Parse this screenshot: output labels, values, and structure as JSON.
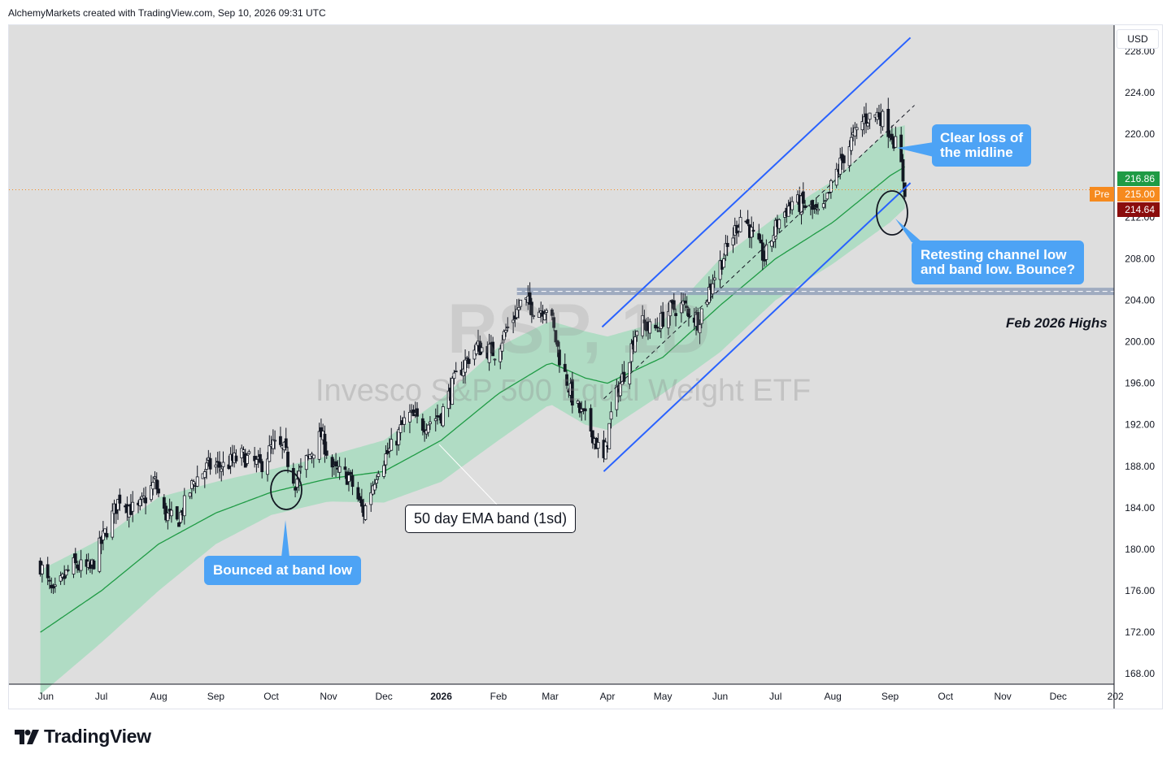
{
  "header": {
    "text": "AlchemyMarkets created with TradingView.com, Sep 10, 2026 09:31 UTC"
  },
  "footer": {
    "brand": "TradingView"
  },
  "currency": "USD",
  "watermark": {
    "symbol": "RSP, 1D",
    "name": "Invesco S&P 500 Equal Weight ETF"
  },
  "annotations": {
    "bounce": "Bounced at band low",
    "midline_line1": "Clear loss of",
    "midline_line2": "the midline",
    "retest_line1": "Retesting channel low",
    "retest_line2": "and band low. Bounce?",
    "ema_band": "50 day EMA band (1sd)",
    "feb_highs": "Feb 2026 Highs"
  },
  "colors": {
    "plot_bg": "#dedede",
    "band": "#a8dcc0",
    "ema": "#1f9b45",
    "candle_up": "#ffffff",
    "candle_down": "#131722",
    "channel": "#2962ff",
    "resistance": "#8a9ab5",
    "callout": "#4da3f5",
    "last_price_bg": "#1f9b45",
    "premarket_bg": "#f68a1e",
    "prev_price_bg": "#8b0d0d"
  },
  "price_tags": [
    {
      "label": "",
      "value": "216.86",
      "color": "#1f9b45"
    },
    {
      "label": "Pre",
      "value": "215.00",
      "color": "#f68a1e"
    },
    {
      "label": "",
      "value": "214.64",
      "color": "#8b0d0d"
    }
  ],
  "chart_data": {
    "type": "candlestick",
    "symbol": "RSP",
    "interval": "1D",
    "y_axis": {
      "ticks": [
        "228.00",
        "224.00",
        "220.00",
        "216.00",
        "212.00",
        "208.00",
        "204.00",
        "200.00",
        "196.00",
        "192.00",
        "188.00",
        "184.00",
        "180.00",
        "176.00",
        "172.00",
        "168.00"
      ],
      "range": [
        167,
        230.5
      ]
    },
    "x_axis": {
      "ticks": [
        "Jun",
        "Jul",
        "Aug",
        "Sep",
        "Oct",
        "Nov",
        "Dec",
        "2026",
        "Feb",
        "Mar",
        "Apr",
        "May",
        "Jun",
        "Jul",
        "Aug",
        "Sep",
        "Oct",
        "Nov",
        "Dec",
        "202"
      ]
    },
    "close_path": [
      [
        "2025-05-29",
        178.5
      ],
      [
        "2025-06-05",
        175.5
      ],
      [
        "2025-06-15",
        178.5
      ],
      [
        "2025-06-25",
        178.0
      ],
      [
        "2025-07-03",
        181.5
      ],
      [
        "2025-07-11",
        185.0
      ],
      [
        "2025-07-20",
        183.5
      ],
      [
        "2025-07-30",
        186.5
      ],
      [
        "2025-08-04",
        183.5
      ],
      [
        "2025-08-11",
        182.5
      ],
      [
        "2025-08-20",
        186.5
      ],
      [
        "2025-08-28",
        188.0
      ],
      [
        "2025-09-05",
        188.0
      ],
      [
        "2025-09-15",
        189.0
      ],
      [
        "2025-09-25",
        188.0
      ],
      [
        "2025-10-02",
        190.0
      ],
      [
        "2025-10-08",
        189.5
      ],
      [
        "2025-10-14",
        186.5
      ],
      [
        "2025-10-20",
        188.5
      ],
      [
        "2025-10-28",
        191.0
      ],
      [
        "2025-11-04",
        187.5
      ],
      [
        "2025-11-12",
        187.0
      ],
      [
        "2025-11-20",
        183.5
      ],
      [
        "2025-11-28",
        188.0
      ],
      [
        "2025-12-06",
        190.0
      ],
      [
        "2025-12-14",
        193.0
      ],
      [
        "2025-12-22",
        192.0
      ],
      [
        "2026-01-01",
        193.0
      ],
      [
        "2026-01-10",
        197.0
      ],
      [
        "2026-01-20",
        199.5
      ],
      [
        "2026-01-30",
        199.0
      ],
      [
        "2026-02-08",
        202.0
      ],
      [
        "2026-02-14",
        204.0
      ],
      [
        "2026-02-22",
        203.0
      ],
      [
        "2026-02-28",
        203.5
      ],
      [
        "2026-03-06",
        198.5
      ],
      [
        "2026-03-14",
        194.0
      ],
      [
        "2026-03-22",
        192.0
      ],
      [
        "2026-03-30",
        188.5
      ],
      [
        "2026-04-04",
        194.0
      ],
      [
        "2026-04-10",
        197.0
      ],
      [
        "2026-04-18",
        202.0
      ],
      [
        "2026-04-26",
        201.0
      ],
      [
        "2026-05-04",
        203.0
      ],
      [
        "2026-05-12",
        203.5
      ],
      [
        "2026-05-20",
        202.0
      ],
      [
        "2026-05-28",
        206.0
      ],
      [
        "2026-06-05",
        209.0
      ],
      [
        "2026-06-13",
        212.5
      ],
      [
        "2026-06-19",
        210.0
      ],
      [
        "2026-06-25",
        208.0
      ],
      [
        "2026-07-02",
        211.5
      ],
      [
        "2026-07-10",
        213.5
      ],
      [
        "2026-07-18",
        213.0
      ],
      [
        "2026-07-26",
        212.0
      ],
      [
        "2026-08-02",
        216.0
      ],
      [
        "2026-08-10",
        219.0
      ],
      [
        "2026-08-18",
        221.5
      ],
      [
        "2026-08-26",
        222.0
      ],
      [
        "2026-09-02",
        220.0
      ],
      [
        "2026-09-06",
        218.0
      ],
      [
        "2026-09-09",
        214.64
      ]
    ],
    "ema50": [
      [
        "2025-05-29",
        172.0
      ],
      [
        "2025-07-01",
        176.0
      ],
      [
        "2025-08-01",
        180.5
      ],
      [
        "2025-09-01",
        183.5
      ],
      [
        "2025-10-01",
        185.5
      ],
      [
        "2025-11-01",
        186.8
      ],
      [
        "2025-12-01",
        187.5
      ],
      [
        "2026-01-01",
        190.5
      ],
      [
        "2026-02-01",
        195.0
      ],
      [
        "2026-03-01",
        198.0
      ],
      [
        "2026-03-20",
        196.5
      ],
      [
        "2026-04-01",
        196.0
      ],
      [
        "2026-05-01",
        198.5
      ],
      [
        "2026-06-01",
        203.5
      ],
      [
        "2026-07-01",
        208.0
      ],
      [
        "2026-08-01",
        211.5
      ],
      [
        "2026-09-01",
        216.0
      ],
      [
        "2026-09-09",
        216.86
      ]
    ],
    "band_sd": [
      [
        "2025-05-29",
        6.0
      ],
      [
        "2025-07-01",
        5.0
      ],
      [
        "2025-08-01",
        4.5
      ],
      [
        "2025-09-01",
        3.0
      ],
      [
        "2025-10-01",
        2.2
      ],
      [
        "2025-11-01",
        2.2
      ],
      [
        "2025-12-01",
        3.0
      ],
      [
        "2026-01-01",
        4.0
      ],
      [
        "2026-02-01",
        4.5
      ],
      [
        "2026-03-01",
        4.0
      ],
      [
        "2026-03-20",
        4.5
      ],
      [
        "2026-04-01",
        4.5
      ],
      [
        "2026-05-01",
        3.5
      ],
      [
        "2026-06-01",
        4.5
      ],
      [
        "2026-07-01",
        4.0
      ],
      [
        "2026-08-01",
        4.0
      ],
      [
        "2026-09-01",
        4.5
      ],
      [
        "2026-09-09",
        4.0
      ]
    ],
    "trend_channel": {
      "lower": [
        [
          "2026-03-30",
          187.5
        ],
        [
          "2026-09-12",
          215.3
        ]
      ],
      "upper": [
        [
          "2026-03-30",
          201.5
        ],
        [
          "2026-09-12",
          229.3
        ]
      ],
      "midline": [
        [
          "2026-03-30",
          194.5
        ],
        [
          "2026-09-01",
          222.0
        ]
      ]
    },
    "horizontal_levels": [
      {
        "name": "Feb 2026 Highs",
        "range": [
          204.5,
          205.2
        ],
        "from": "2026-02-11"
      }
    ],
    "last_price": 214.64
  }
}
